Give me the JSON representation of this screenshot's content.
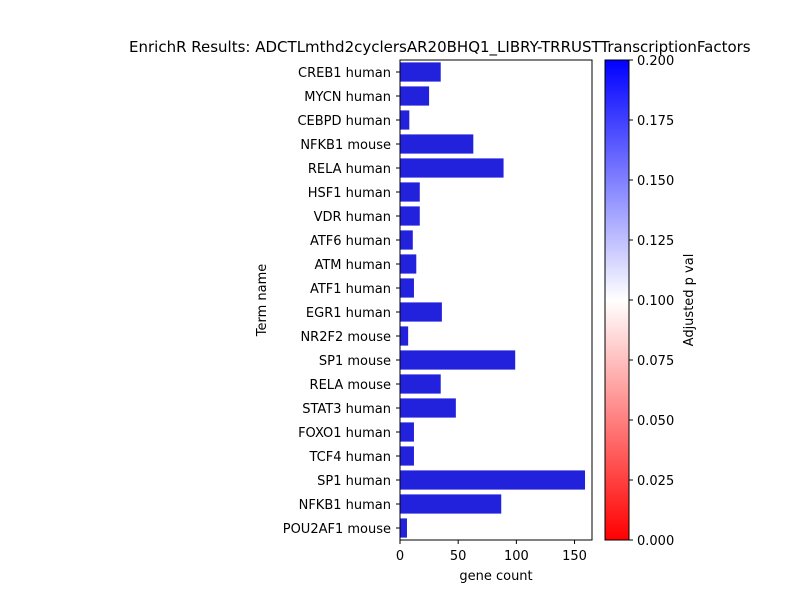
{
  "chart_data": {
    "type": "bar",
    "orientation": "horizontal",
    "title": "EnrichR Results: ADCTLmthd2cyclersAR20BHQ1_LIBRY-TRRUSTTranscriptionFactors",
    "xlabel": "gene count",
    "ylabel": "Term name",
    "xlim": [
      0,
      165
    ],
    "xticks": [
      0,
      50,
      100,
      150
    ],
    "categories": [
      "CREB1 human",
      "MYCN human",
      "CEBPD human",
      "NFKB1 mouse",
      "RELA human",
      "HSF1 human",
      "VDR human",
      "ATF6 human",
      "ATM human",
      "ATF1 human",
      "EGR1 human",
      "NR2F2 mouse",
      "SP1 mouse",
      "RELA mouse",
      "STAT3 human",
      "FOXO1 human",
      "TCF4 human",
      "SP1 human",
      "NFKB1 human",
      "POU2AF1 mouse"
    ],
    "values": [
      35,
      25,
      8,
      63,
      89,
      17,
      17,
      11,
      14,
      12,
      36,
      7,
      99,
      35,
      48,
      12,
      12,
      159,
      87,
      6
    ],
    "bar_color": "#2222dd",
    "colorbar": {
      "label": "Adjusted p val",
      "range": [
        0,
        0.2
      ],
      "ticks": [
        "0.000",
        "0.025",
        "0.050",
        "0.075",
        "0.100",
        "0.125",
        "0.150",
        "0.175",
        "0.200"
      ],
      "colors": [
        "#ff0000",
        "#ffffff",
        "#0000ff"
      ]
    },
    "grid": false,
    "legend": "none"
  }
}
